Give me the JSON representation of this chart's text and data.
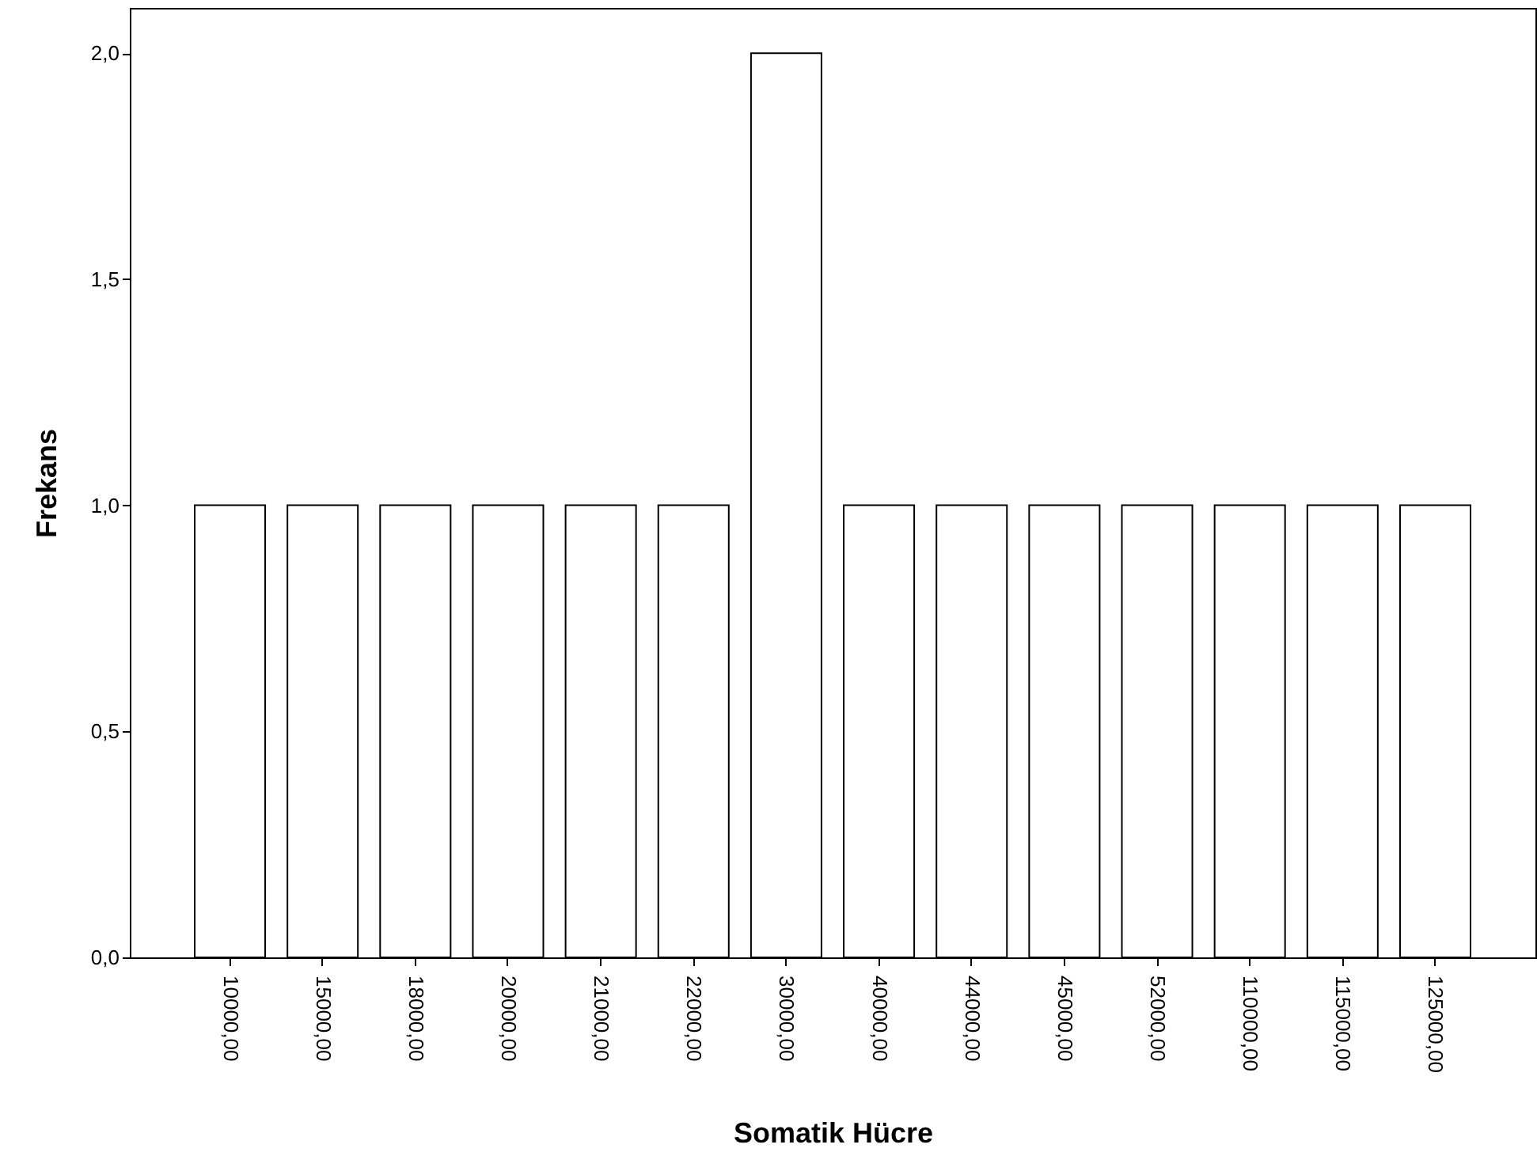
{
  "chart_data": {
    "type": "bar",
    "xlabel": "Somatik Hücre",
    "ylabel": "Frekans",
    "categories": [
      "10000,00",
      "15000,00",
      "18000,00",
      "20000,00",
      "21000,00",
      "22000,00",
      "30000,00",
      "40000,00",
      "44000,00",
      "45000,00",
      "52000,00",
      "110000,00",
      "115000,00",
      "125000,00"
    ],
    "values": [
      1,
      1,
      1,
      1,
      1,
      1,
      2,
      1,
      1,
      1,
      1,
      1,
      1,
      1
    ],
    "color": "#ffffff",
    "ylim": [
      0,
      2.1
    ],
    "yticks": [
      {
        "value": 0,
        "label": "0,0"
      },
      {
        "value": 0.5,
        "label": "0,5"
      },
      {
        "value": 1,
        "label": "1,0"
      },
      {
        "value": 1.5,
        "label": "1,5"
      },
      {
        "value": 2,
        "label": "2,0"
      }
    ],
    "grid": false
  }
}
